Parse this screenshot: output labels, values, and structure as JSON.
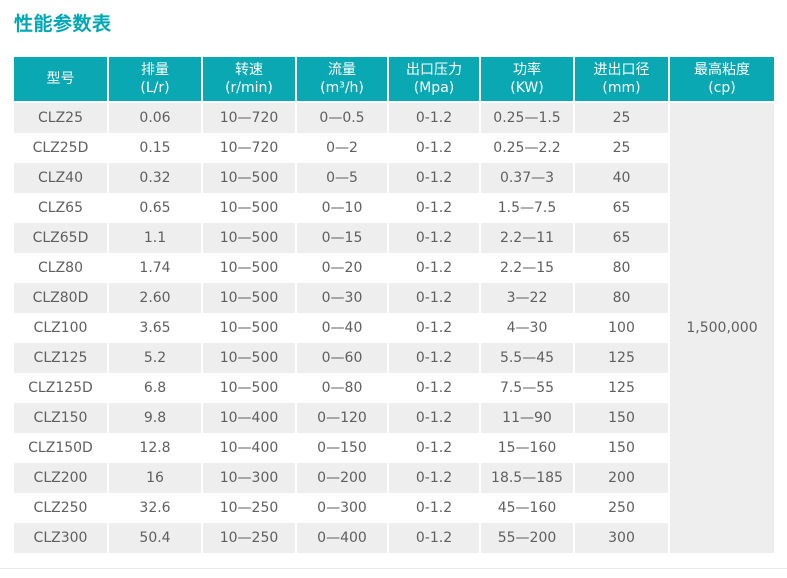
{
  "page": {
    "title": "性能参数表"
  },
  "colors": {
    "title": "#00a7b5",
    "header_bg": "#0aa8b3",
    "header_text": "#ffffff",
    "row_alt": "#eeeeee",
    "text": "#5f5f5f"
  },
  "table": {
    "columns": [
      {
        "label": "型号",
        "unit": ""
      },
      {
        "label": "排量",
        "unit": "(L/r)"
      },
      {
        "label": "转速",
        "unit": "(r/min)"
      },
      {
        "label": "流量",
        "unit": "(m³/h)"
      },
      {
        "label": "出口压力",
        "unit": "(Mpa)"
      },
      {
        "label": "功率",
        "unit": "(KW)"
      },
      {
        "label": "进出口径",
        "unit": "(mm)"
      },
      {
        "label": "最高粘度",
        "unit": "(cp)"
      }
    ],
    "max_viscosity": "1,500,000",
    "rows": [
      [
        "CLZ25",
        "0.06",
        "10—720",
        "0—0.5",
        "0-1.2",
        "0.25—1.5",
        "25"
      ],
      [
        "CLZ25D",
        "0.15",
        "10—720",
        "0—2",
        "0-1.2",
        "0.25—2.2",
        "25"
      ],
      [
        "CLZ40",
        "0.32",
        "10—500",
        "0—5",
        "0-1.2",
        "0.37—3",
        "40"
      ],
      [
        "CLZ65",
        "0.65",
        "10—500",
        "0—10",
        "0-1.2",
        "1.5—7.5",
        "65"
      ],
      [
        "CLZ65D",
        "1.1",
        "10—500",
        "0—15",
        "0-1.2",
        "2.2—11",
        "65"
      ],
      [
        "CLZ80",
        "1.74",
        "10—500",
        "0—20",
        "0-1.2",
        "2.2—15",
        "80"
      ],
      [
        "CLZ80D",
        "2.60",
        "10—500",
        "0—30",
        "0-1.2",
        "3—22",
        "80"
      ],
      [
        "CLZ100",
        "3.65",
        "10—500",
        "0—40",
        "0-1.2",
        "4—30",
        "100"
      ],
      [
        "CLZ125",
        "5.2",
        "10—500",
        "0—60",
        "0-1.2",
        "5.5—45",
        "125"
      ],
      [
        "CLZ125D",
        "6.8",
        "10—500",
        "0—80",
        "0-1.2",
        "7.5—55",
        "125"
      ],
      [
        "CLZ150",
        "9.8",
        "10—400",
        "0—120",
        "0-1.2",
        "11—90",
        "150"
      ],
      [
        "CLZ150D",
        "12.8",
        "10—400",
        "0—150",
        "0-1.2",
        "15—160",
        "150"
      ],
      [
        "CLZ200",
        "16",
        "10—300",
        "0—200",
        "0-1.2",
        "18.5—185",
        "200"
      ],
      [
        "CLZ250",
        "32.6",
        "10—250",
        "0—300",
        "0-1.2",
        "45—160",
        "250"
      ],
      [
        "CLZ300",
        "50.4",
        "10—250",
        "0—400",
        "0-1.2",
        "55—200",
        "300"
      ]
    ]
  }
}
